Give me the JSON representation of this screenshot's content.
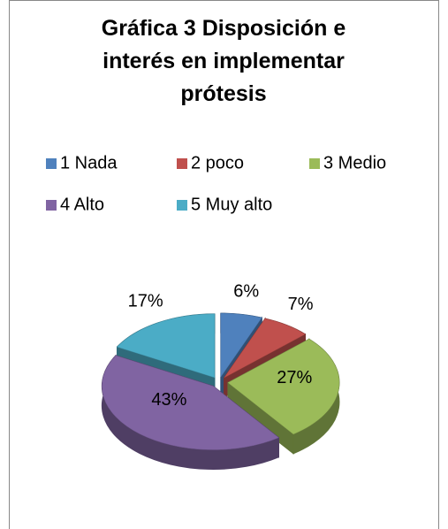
{
  "chart_data": {
    "type": "pie3d",
    "title": "Gráfica 3 Disposición e interés en implementar prótesis",
    "categories": [
      "1 Nada",
      "2 poco",
      "3 Medio",
      "4 Alto",
      "5 Muy alto"
    ],
    "values": [
      6,
      7,
      27,
      43,
      17
    ],
    "value_labels": [
      "6%",
      "7%",
      "27%",
      "43%",
      "17%"
    ],
    "colors": [
      "#4f81bd",
      "#c0504d",
      "#9bbb59",
      "#8064a2",
      "#4bacc6"
    ],
    "legend": "top"
  }
}
